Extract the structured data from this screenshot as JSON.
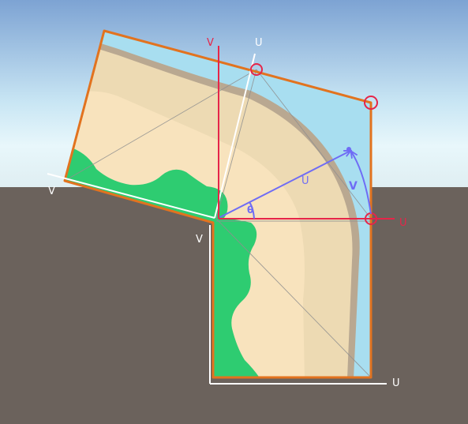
{
  "labels": {
    "top_v_red": "V",
    "top_u_white": "U",
    "right_u_red": "U",
    "left_v_white": "V",
    "lower_v_white": "V",
    "bottom_u_white": "U",
    "diagonal_u_blue": "U",
    "arc_v_blue": "V",
    "theta": "θ"
  },
  "colors": {
    "sky_top": "#7da3d3",
    "sky_horizon": "#e5f6fb",
    "ground": "#6b625c",
    "sand_light": "#f8e3bd",
    "sand_dark": "#eddab3",
    "shore_brown": "#b2a28e",
    "water": "#a8def0",
    "grass": "#2ecc71",
    "outline_orange": "#e2731f",
    "axis_red": "#e62549",
    "axis_white": "#ffffff",
    "vector_blue": "#6f6cf5",
    "helper_line": "#8a8a8a"
  }
}
